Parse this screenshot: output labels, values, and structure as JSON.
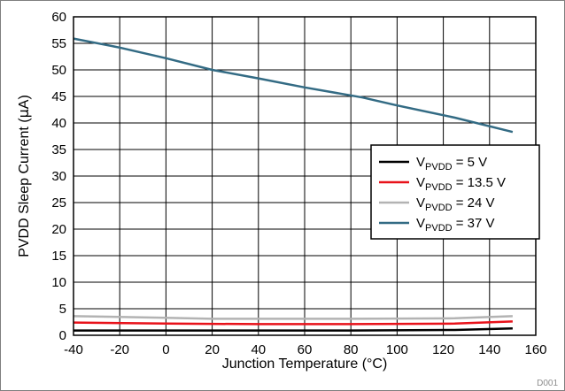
{
  "chart_data": {
    "type": "line",
    "xlabel": "Junction Temperature (°C)",
    "ylabel_prefix": "PVDD Sleep Current (",
    "ylabel_mu": "μ",
    "ylabel_suffix": "A)",
    "xlim": [
      -40,
      160
    ],
    "ylim": [
      0,
      60
    ],
    "xticks": [
      -40,
      -20,
      0,
      20,
      40,
      60,
      80,
      100,
      120,
      140,
      160
    ],
    "yticks": [
      0,
      5,
      10,
      15,
      20,
      25,
      30,
      35,
      40,
      45,
      50,
      55,
      60
    ],
    "grid": true,
    "legend_position": "right",
    "figure_id": "D001",
    "series": [
      {
        "legend_main": "V",
        "legend_sub": "PVDD",
        "legend_value": " = 5 V",
        "color": "#000000",
        "x": [
          -40,
          0,
          40,
          80,
          125,
          150
        ],
        "y": [
          0.9,
          0.9,
          0.9,
          0.9,
          1.0,
          1.3
        ]
      },
      {
        "legend_main": "V",
        "legend_sub": "PVDD",
        "legend_value": " = 13.5 V",
        "color": "#e8121a",
        "x": [
          -40,
          0,
          40,
          80,
          125,
          150
        ],
        "y": [
          2.4,
          2.2,
          2.1,
          2.1,
          2.2,
          2.6
        ]
      },
      {
        "legend_main": "V",
        "legend_sub": "PVDD",
        "legend_value": " = 24 V",
        "color": "#b3b3b3",
        "x": [
          -40,
          0,
          20,
          40,
          80,
          125,
          150
        ],
        "y": [
          3.6,
          3.3,
          3.1,
          3.1,
          3.1,
          3.2,
          3.6
        ]
      },
      {
        "legend_main": "V",
        "legend_sub": "PVDD",
        "legend_value": " = 37 V",
        "color": "#336b84",
        "x": [
          -40,
          -20,
          0,
          20,
          40,
          60,
          85,
          100,
          125,
          150
        ],
        "y": [
          55.9,
          54.2,
          52.2,
          50.0,
          48.4,
          46.7,
          44.8,
          43.3,
          41.0,
          38.3
        ]
      }
    ]
  }
}
